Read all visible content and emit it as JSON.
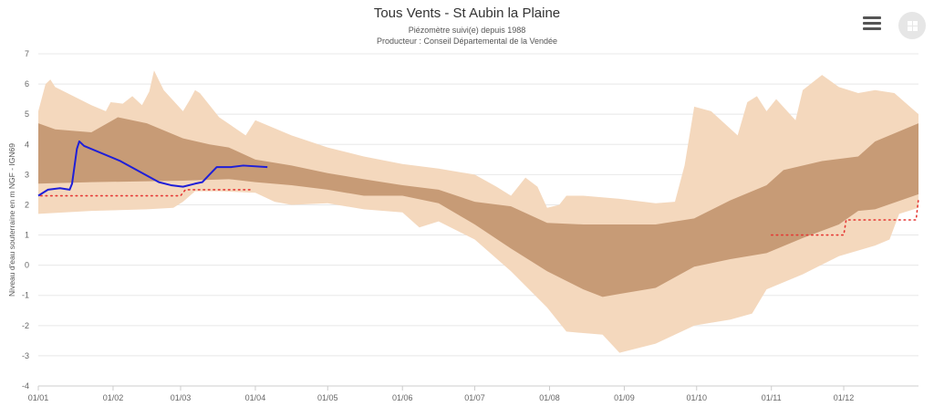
{
  "header": {
    "title": "Tous Vents - St Aubin la Plaine",
    "subtitle_1": "Piézomètre suivi(e) depuis 1988",
    "subtitle_2": "Producteur : Conseil Départemental de la Vendée"
  },
  "toolbar": {
    "menu_icon": "hamburger-menu-icon",
    "grid_icon": "grid-view-icon"
  },
  "colors": {
    "outer_band": "#f4d8bd",
    "inner_band": "#c79b76",
    "current_year": "#1f1fd8",
    "threshold": "#e53935",
    "grid": "#e8e8e8"
  },
  "chart_data": {
    "type": "area",
    "title": "Tous Vents - St Aubin la Plaine",
    "xlabel": "",
    "ylabel": "Niveau d'eau souterraine en m NGF - IGN69",
    "ylim": [
      -4,
      7
    ],
    "xlim_days": [
      0,
      365
    ],
    "grid": true,
    "yticks": [
      "7",
      "6",
      "5",
      "4",
      "3",
      "2",
      "1",
      "0",
      "-1",
      "-2",
      "-3",
      "-4"
    ],
    "xticks": [
      {
        "day": 0,
        "label": "01/01"
      },
      {
        "day": 31,
        "label": "01/02"
      },
      {
        "day": 59,
        "label": "01/03"
      },
      {
        "day": 90,
        "label": "01/04"
      },
      {
        "day": 120,
        "label": "01/05"
      },
      {
        "day": 151,
        "label": "01/06"
      },
      {
        "day": 181,
        "label": "01/07"
      },
      {
        "day": 212,
        "label": "01/08"
      },
      {
        "day": 243,
        "label": "01/09"
      },
      {
        "day": 273,
        "label": "01/10"
      },
      {
        "day": 304,
        "label": "01/11"
      },
      {
        "day": 334,
        "label": "01/12"
      }
    ],
    "series": [
      {
        "name": "max",
        "kind": "outer-upper",
        "points": [
          [
            0,
            5.1
          ],
          [
            3,
            6.0
          ],
          [
            5,
            6.15
          ],
          [
            7,
            5.9
          ],
          [
            22,
            5.3
          ],
          [
            28,
            5.1
          ],
          [
            30,
            5.4
          ],
          [
            35,
            5.35
          ],
          [
            39,
            5.6
          ],
          [
            43,
            5.3
          ],
          [
            46,
            5.75
          ],
          [
            48,
            6.45
          ],
          [
            52,
            5.8
          ],
          [
            60,
            5.1
          ],
          [
            63,
            5.5
          ],
          [
            65,
            5.8
          ],
          [
            67,
            5.7
          ],
          [
            75,
            4.9
          ],
          [
            86,
            4.3
          ],
          [
            90,
            4.8
          ],
          [
            105,
            4.3
          ],
          [
            120,
            3.9
          ],
          [
            135,
            3.6
          ],
          [
            151,
            3.35
          ],
          [
            166,
            3.2
          ],
          [
            181,
            3.0
          ],
          [
            190,
            2.6
          ],
          [
            196,
            2.3
          ],
          [
            199,
            2.6
          ],
          [
            202,
            2.9
          ],
          [
            207,
            2.6
          ],
          [
            211,
            1.9
          ],
          [
            216,
            2.0
          ],
          [
            219,
            2.3
          ],
          [
            226,
            2.3
          ],
          [
            241,
            2.2
          ],
          [
            256,
            2.05
          ],
          [
            264,
            2.1
          ],
          [
            268,
            3.3
          ],
          [
            272,
            5.25
          ],
          [
            279,
            5.1
          ],
          [
            290,
            4.3
          ],
          [
            294,
            5.4
          ],
          [
            298,
            5.6
          ],
          [
            302,
            5.1
          ],
          [
            306,
            5.5
          ],
          [
            314,
            4.8
          ],
          [
            317,
            5.8
          ],
          [
            325,
            6.3
          ],
          [
            332,
            5.9
          ],
          [
            340,
            5.7
          ],
          [
            347,
            5.8
          ],
          [
            355,
            5.7
          ],
          [
            365,
            5.0
          ]
        ]
      },
      {
        "name": "upper-quantile",
        "kind": "inner-upper",
        "points": [
          [
            0,
            4.7
          ],
          [
            7,
            4.5
          ],
          [
            22,
            4.4
          ],
          [
            33,
            4.9
          ],
          [
            45,
            4.7
          ],
          [
            60,
            4.2
          ],
          [
            71,
            4.0
          ],
          [
            79,
            3.9
          ],
          [
            90,
            3.5
          ],
          [
            105,
            3.3
          ],
          [
            120,
            3.05
          ],
          [
            135,
            2.85
          ],
          [
            151,
            2.65
          ],
          [
            166,
            2.5
          ],
          [
            181,
            2.1
          ],
          [
            196,
            1.95
          ],
          [
            211,
            1.4
          ],
          [
            226,
            1.35
          ],
          [
            241,
            1.35
          ],
          [
            256,
            1.35
          ],
          [
            272,
            1.55
          ],
          [
            287,
            2.15
          ],
          [
            302,
            2.65
          ],
          [
            309,
            3.15
          ],
          [
            325,
            3.45
          ],
          [
            340,
            3.6
          ],
          [
            347,
            4.1
          ],
          [
            365,
            4.7
          ]
        ]
      },
      {
        "name": "lower-quantile",
        "kind": "inner-lower",
        "points": [
          [
            0,
            2.7
          ],
          [
            22,
            2.75
          ],
          [
            60,
            2.8
          ],
          [
            79,
            2.85
          ],
          [
            90,
            2.75
          ],
          [
            105,
            2.65
          ],
          [
            120,
            2.5
          ],
          [
            135,
            2.3
          ],
          [
            151,
            2.3
          ],
          [
            166,
            2.05
          ],
          [
            181,
            1.35
          ],
          [
            196,
            0.55
          ],
          [
            211,
            -0.2
          ],
          [
            226,
            -0.8
          ],
          [
            234,
            -1.05
          ],
          [
            241,
            -0.95
          ],
          [
            256,
            -0.75
          ],
          [
            272,
            -0.05
          ],
          [
            287,
            0.2
          ],
          [
            302,
            0.4
          ],
          [
            317,
            0.9
          ],
          [
            332,
            1.35
          ],
          [
            340,
            1.8
          ],
          [
            347,
            1.85
          ],
          [
            365,
            2.35
          ]
        ]
      },
      {
        "name": "min",
        "kind": "outer-lower",
        "points": [
          [
            0,
            1.7
          ],
          [
            22,
            1.8
          ],
          [
            45,
            1.85
          ],
          [
            56,
            1.9
          ],
          [
            60,
            2.1
          ],
          [
            65,
            2.45
          ],
          [
            75,
            2.45
          ],
          [
            90,
            2.4
          ],
          [
            98,
            2.1
          ],
          [
            105,
            2.0
          ],
          [
            120,
            2.05
          ],
          [
            135,
            1.85
          ],
          [
            151,
            1.75
          ],
          [
            158,
            1.25
          ],
          [
            166,
            1.45
          ],
          [
            181,
            0.85
          ],
          [
            196,
            -0.2
          ],
          [
            211,
            -1.4
          ],
          [
            219,
            -2.2
          ],
          [
            234,
            -2.3
          ],
          [
            241,
            -2.9
          ],
          [
            256,
            -2.6
          ],
          [
            272,
            -2.0
          ],
          [
            287,
            -1.8
          ],
          [
            296,
            -1.6
          ],
          [
            302,
            -0.8
          ],
          [
            317,
            -0.3
          ],
          [
            332,
            0.3
          ],
          [
            347,
            0.65
          ],
          [
            353,
            0.85
          ],
          [
            357,
            1.7
          ],
          [
            365,
            1.9
          ]
        ]
      },
      {
        "name": "current-year",
        "kind": "line",
        "points": [
          [
            0,
            2.3
          ],
          [
            4,
            2.5
          ],
          [
            9,
            2.55
          ],
          [
            13,
            2.5
          ],
          [
            14,
            2.7
          ],
          [
            16,
            3.85
          ],
          [
            17,
            4.1
          ],
          [
            19,
            3.95
          ],
          [
            34,
            3.45
          ],
          [
            50,
            2.75
          ],
          [
            55,
            2.65
          ],
          [
            60,
            2.6
          ],
          [
            65,
            2.7
          ],
          [
            68,
            2.75
          ],
          [
            71,
            3.0
          ],
          [
            74,
            3.25
          ],
          [
            80,
            3.25
          ],
          [
            85,
            3.3
          ],
          [
            95,
            3.25
          ]
        ]
      },
      {
        "name": "threshold",
        "kind": "dotted",
        "points": [
          [
            1,
            2.3
          ],
          [
            59,
            2.3
          ],
          [
            61,
            2.5
          ],
          [
            88,
            2.5
          ]
        ]
      },
      {
        "name": "threshold-end",
        "kind": "dotted",
        "points": [
          [
            304,
            1.0
          ],
          [
            334,
            1.0
          ],
          [
            335,
            1.5
          ],
          [
            364,
            1.5
          ],
          [
            365,
            2.2
          ]
        ]
      }
    ]
  }
}
